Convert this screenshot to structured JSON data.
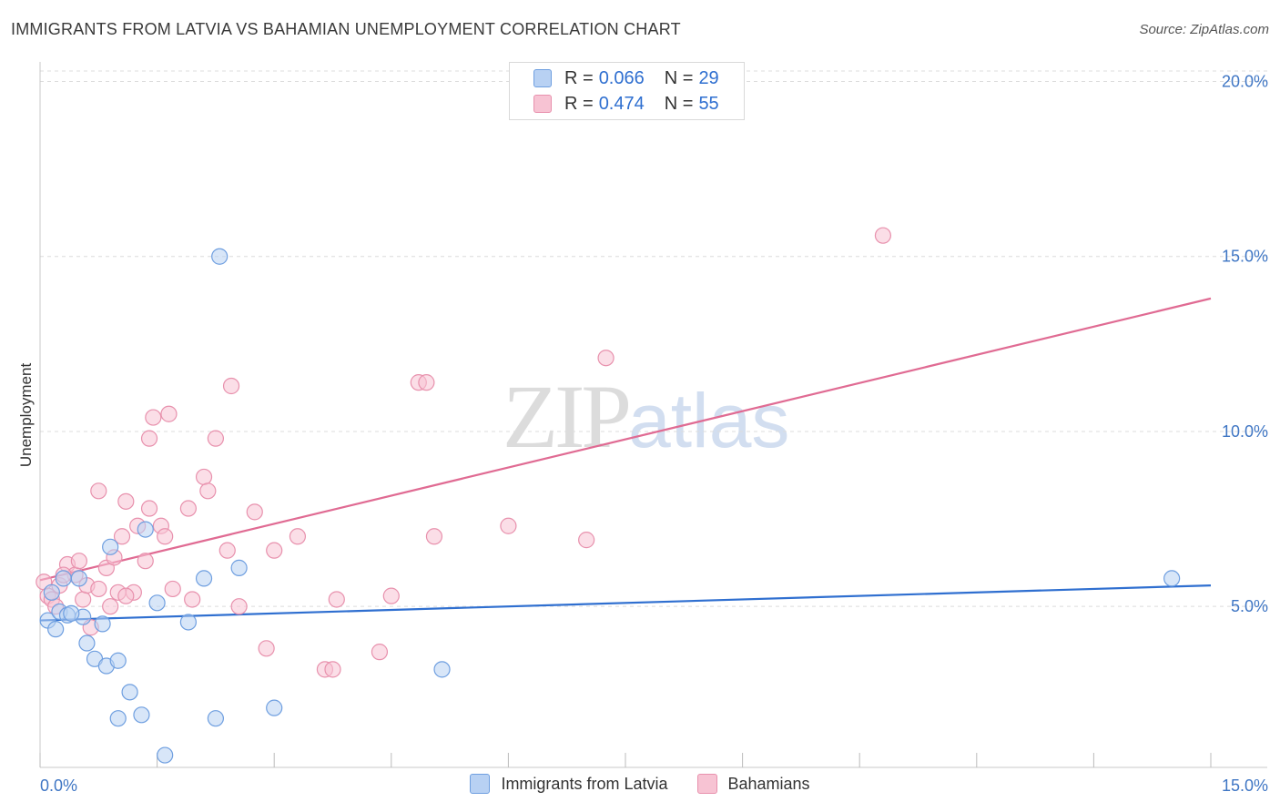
{
  "header": {
    "title": "IMMIGRANTS FROM LATVIA VS BAHAMIAN UNEMPLOYMENT CORRELATION CHART",
    "source": "Source: ZipAtlas.com"
  },
  "watermark": {
    "zip": "ZIP",
    "atlas": "atlas"
  },
  "legend": {
    "rows": [
      {
        "r_label": "R =",
        "r_value": "0.066",
        "n_label": "N =",
        "n_value": "29"
      },
      {
        "r_label": "R =",
        "r_value": "0.474",
        "n_label": "N =",
        "n_value": "55"
      }
    ]
  },
  "bottom_legend": {
    "series1": "Immigrants from Latvia",
    "series2": "Bahamians"
  },
  "colors": {
    "latvia_fill": "#b8d1f3",
    "latvia_stroke": "#6f9fe0",
    "latvia_line": "#2f6fd0",
    "bahamas_fill": "#f7c3d3",
    "bahamas_stroke": "#e891ad",
    "bahamas_line": "#e06b93",
    "grid": "#dcdcdc",
    "tick": "#3f76c4"
  },
  "chart_data": {
    "type": "scatter",
    "title": "IMMIGRANTS FROM LATVIA VS BAHAMIAN UNEMPLOYMENT CORRELATION CHART",
    "xlabel": "",
    "ylabel": "Unemployment",
    "xlim": [
      0,
      15
    ],
    "ylim": [
      0.4,
      20.3
    ],
    "x_tick_labels": [
      {
        "value": 0,
        "label": "0.0%"
      },
      {
        "value": 15,
        "label": "15.0%"
      }
    ],
    "y_tick_labels": [
      {
        "value": 5,
        "label": "5.0%"
      },
      {
        "value": 10,
        "label": "10.0%"
      },
      {
        "value": 15,
        "label": "15.0%"
      },
      {
        "value": 20,
        "label": "20.0%"
      }
    ],
    "series": [
      {
        "name": "Immigrants from Latvia",
        "R": 0.066,
        "N": 29,
        "points": [
          [
            0.1,
            4.6
          ],
          [
            0.2,
            4.35
          ],
          [
            0.25,
            4.85
          ],
          [
            0.3,
            5.8
          ],
          [
            0.35,
            4.75
          ],
          [
            0.5,
            5.8
          ],
          [
            0.55,
            4.7
          ],
          [
            0.6,
            3.95
          ],
          [
            0.7,
            3.5
          ],
          [
            0.8,
            4.5
          ],
          [
            0.85,
            3.3
          ],
          [
            0.9,
            6.7
          ],
          [
            1.0,
            3.45
          ],
          [
            1.0,
            1.8
          ],
          [
            1.15,
            2.55
          ],
          [
            1.35,
            7.2
          ],
          [
            1.3,
            1.9
          ],
          [
            1.5,
            5.1
          ],
          [
            1.6,
            0.75
          ],
          [
            1.9,
            4.55
          ],
          [
            2.1,
            5.8
          ],
          [
            2.25,
            1.8
          ],
          [
            2.3,
            15.0
          ],
          [
            2.55,
            6.1
          ],
          [
            3.0,
            2.1
          ],
          [
            5.15,
            3.2
          ],
          [
            14.5,
            5.8
          ],
          [
            0.15,
            5.4
          ],
          [
            0.4,
            4.8
          ]
        ],
        "trend": {
          "x": [
            0,
            15
          ],
          "y": [
            4.6,
            5.6
          ]
        }
      },
      {
        "name": "Bahamians",
        "R": 0.474,
        "N": 55,
        "points": [
          [
            0.05,
            5.7
          ],
          [
            0.1,
            5.3
          ],
          [
            0.15,
            5.2
          ],
          [
            0.25,
            5.6
          ],
          [
            0.35,
            6.2
          ],
          [
            0.45,
            5.9
          ],
          [
            0.5,
            6.3
          ],
          [
            0.55,
            5.2
          ],
          [
            0.6,
            5.6
          ],
          [
            0.65,
            4.4
          ],
          [
            0.75,
            5.5
          ],
          [
            0.75,
            8.3
          ],
          [
            0.85,
            6.1
          ],
          [
            0.9,
            5.0
          ],
          [
            0.95,
            6.4
          ],
          [
            1.0,
            5.4
          ],
          [
            1.05,
            7.0
          ],
          [
            1.1,
            8.0
          ],
          [
            1.2,
            5.4
          ],
          [
            1.25,
            7.3
          ],
          [
            1.35,
            6.3
          ],
          [
            1.4,
            7.8
          ],
          [
            1.4,
            9.8
          ],
          [
            1.45,
            10.4
          ],
          [
            1.55,
            7.3
          ],
          [
            1.6,
            7.0
          ],
          [
            1.65,
            10.5
          ],
          [
            1.7,
            5.5
          ],
          [
            1.9,
            7.8
          ],
          [
            1.95,
            5.2
          ],
          [
            2.1,
            8.7
          ],
          [
            2.15,
            8.3
          ],
          [
            2.25,
            9.8
          ],
          [
            2.4,
            6.6
          ],
          [
            2.45,
            11.3
          ],
          [
            2.55,
            5.0
          ],
          [
            2.75,
            7.7
          ],
          [
            2.9,
            3.8
          ],
          [
            3.0,
            6.6
          ],
          [
            3.3,
            7.0
          ],
          [
            3.65,
            3.2
          ],
          [
            3.75,
            3.2
          ],
          [
            3.8,
            5.2
          ],
          [
            4.35,
            3.7
          ],
          [
            4.5,
            5.3
          ],
          [
            4.85,
            11.4
          ],
          [
            4.95,
            11.4
          ],
          [
            5.05,
            7.0
          ],
          [
            6.0,
            7.3
          ],
          [
            7.0,
            6.9
          ],
          [
            7.25,
            12.1
          ],
          [
            10.8,
            15.6
          ],
          [
            0.2,
            5.0
          ],
          [
            0.3,
            5.9
          ],
          [
            1.1,
            5.3
          ]
        ],
        "trend": {
          "x": [
            0,
            15
          ],
          "y": [
            5.75,
            13.8
          ]
        }
      }
    ]
  }
}
